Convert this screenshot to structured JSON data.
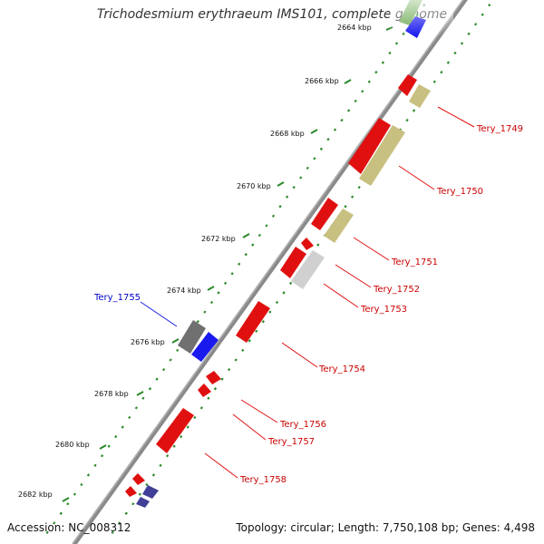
{
  "header": {
    "title": "Trichodesmium erythraeum IMS101, complete genome"
  },
  "footer": {
    "accession": "Accession: NC_008312",
    "summary": "Topology: circular; Length: 7,750,108 bp; Genes: 4,498"
  },
  "scale": {
    "ticks": [
      "2664 kbp",
      "2666 kbp",
      "2668 kbp",
      "2670 kbp",
      "2672 kbp",
      "2674 kbp",
      "2676 kbp",
      "2678 kbp",
      "2680 kbp",
      "2682 kbp"
    ]
  },
  "genes": [
    {
      "name": "Tery_1749",
      "color": "#cc0000"
    },
    {
      "name": "Tery_1750",
      "color": "#cc0000"
    },
    {
      "name": "Tery_1751",
      "color": "#cc0000"
    },
    {
      "name": "Tery_1752",
      "color": "#cc0000"
    },
    {
      "name": "Tery_1753",
      "color": "#cc0000"
    },
    {
      "name": "Tery_1754",
      "color": "#cc0000"
    },
    {
      "name": "Tery_1755",
      "color": "#0000cc"
    },
    {
      "name": "Tery_1756",
      "color": "#cc0000"
    },
    {
      "name": "Tery_1757",
      "color": "#cc0000"
    },
    {
      "name": "Tery_1758",
      "color": "#cc0000"
    }
  ],
  "colors": {
    "backbone": "#8a8a8a",
    "gc_track": "#2a8a2a",
    "feature_red": "#e01010",
    "feature_khaki": "#c8c080",
    "feature_blue": "#1a1aee",
    "feature_grey": "#707070",
    "feature_navy": "#404098"
  }
}
